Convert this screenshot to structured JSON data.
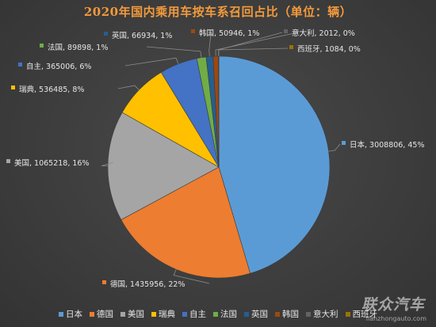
{
  "chart_data": {
    "type": "pie",
    "title": "2020年国内乘用车按车系召回占比（单位：辆）",
    "categories": [
      "日本",
      "德国",
      "美国",
      "瑞典",
      "自主",
      "法国",
      "英国",
      "韩国",
      "意大利",
      "西班牙"
    ],
    "values": [
      3008806,
      1435956,
      1065218,
      536485,
      365006,
      89898,
      66934,
      50946,
      2012,
      1084
    ],
    "percents": [
      "45%",
      "22%",
      "16%",
      "8%",
      "6%",
      "1%",
      "1%",
      "1%",
      "0%",
      "0%"
    ],
    "labels": [
      "日本, 3008806, 45%",
      "德国, 1435956, 22%",
      "美国, 1065218, 16%",
      "瑞典, 536485, 8%",
      "自主, 365006, 6%",
      "法国, 89898, 1%",
      "英国, 66934, 1%",
      "韩国, 50946, 1%",
      "意大利, 2012, 0%",
      "西班牙, 1084, 0%"
    ],
    "colors": [
      "#5b9bd5",
      "#ed7d31",
      "#a5a5a5",
      "#ffc000",
      "#4472c4",
      "#70ad47",
      "#255e91",
      "#9e480e",
      "#636363",
      "#997300"
    ],
    "legend_position": "bottom"
  },
  "watermark": {
    "text": "联众汽车",
    "url": "lianzhongauto.com"
  }
}
